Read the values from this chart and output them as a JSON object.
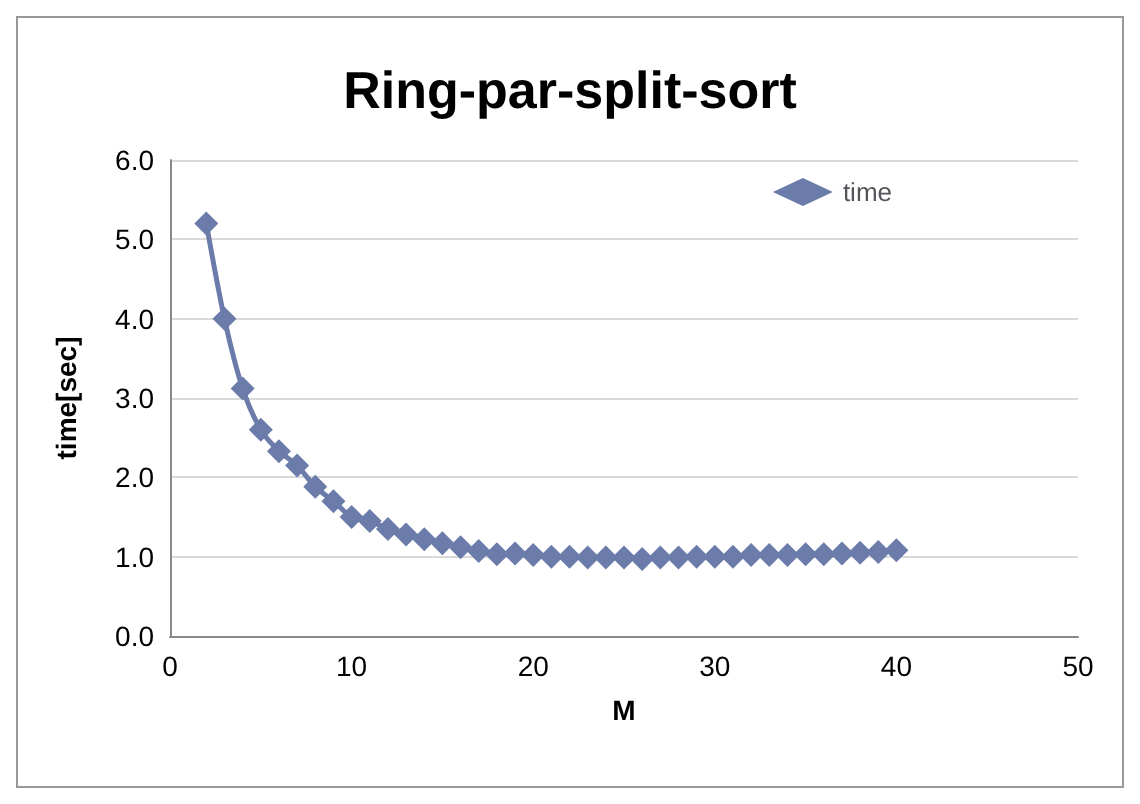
{
  "chart_data": {
    "type": "line",
    "title": "Ring-par-split-sort",
    "xlabel": "M",
    "ylabel": "time[sec]",
    "x": [
      2,
      3,
      4,
      5,
      6,
      7,
      8,
      9,
      10,
      11,
      12,
      13,
      14,
      15,
      16,
      17,
      18,
      19,
      20,
      21,
      22,
      23,
      24,
      25,
      26,
      27,
      28,
      29,
      30,
      31,
      32,
      33,
      34,
      35,
      36,
      37,
      38,
      39,
      40
    ],
    "series": [
      {
        "name": "time",
        "color": "#6b7baa",
        "values": [
          5.2,
          4.0,
          3.12,
          2.6,
          2.33,
          2.15,
          1.88,
          1.7,
          1.5,
          1.45,
          1.35,
          1.28,
          1.22,
          1.17,
          1.12,
          1.07,
          1.03,
          1.04,
          1.02,
          1.0,
          1.0,
          0.99,
          0.99,
          0.99,
          0.97,
          0.99,
          0.99,
          1.0,
          1.0,
          1.0,
          1.02,
          1.02,
          1.02,
          1.03,
          1.03,
          1.04,
          1.05,
          1.06,
          1.08
        ]
      }
    ],
    "xlim": [
      0,
      50
    ],
    "xticks": [
      0,
      10,
      20,
      30,
      40,
      50
    ],
    "ylim": [
      0,
      6
    ],
    "yticks": [
      {
        "value": 0,
        "label": "0.0"
      },
      {
        "value": 1,
        "label": "1.0"
      },
      {
        "value": 2,
        "label": "2.0"
      },
      {
        "value": 3,
        "label": "3.0"
      },
      {
        "value": 4,
        "label": "4.0"
      },
      {
        "value": 5,
        "label": "5.0"
      },
      {
        "value": 6,
        "label": "6.0"
      }
    ],
    "grid": "y",
    "legend": "top right",
    "marker": "diamond",
    "line_style": "solid"
  }
}
